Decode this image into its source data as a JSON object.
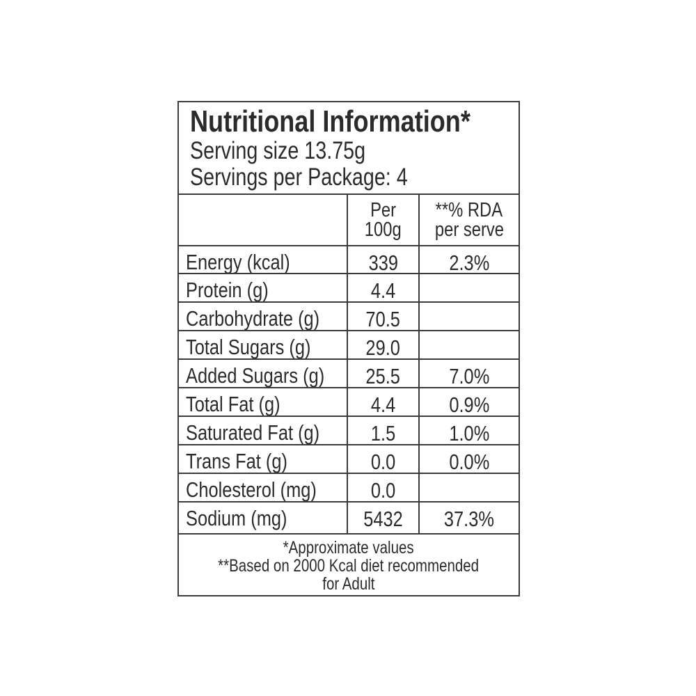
{
  "title": "Nutritional Information*",
  "serving_size": "Serving size 13.75g",
  "servings_per_package": "Servings per Package: 4",
  "columns": {
    "per100g_line1": "Per",
    "per100g_line2": "100g",
    "rda_line1": "**% RDA",
    "rda_line2": "per serve"
  },
  "rows": [
    {
      "label": "Energy (kcal)",
      "per100g": "339",
      "rda": "2.3%"
    },
    {
      "label": "Protein (g)",
      "per100g": "4.4",
      "rda": ""
    },
    {
      "label": "Carbohydrate (g)",
      "per100g": "70.5",
      "rda": ""
    },
    {
      "label": "Total Sugars (g)",
      "per100g": "29.0",
      "rda": ""
    },
    {
      "label": "Added Sugars (g)",
      "per100g": "25.5",
      "rda": "7.0%"
    },
    {
      "label": "Total Fat (g)",
      "per100g": "4.4",
      "rda": "0.9%"
    },
    {
      "label": "Saturated Fat (g)",
      "per100g": "1.5",
      "rda": "1.0%"
    },
    {
      "label": "Trans Fat (g)",
      "per100g": "0.0",
      "rda": "0.0%"
    },
    {
      "label": "Cholesterol (mg)",
      "per100g": "0.0",
      "rda": ""
    },
    {
      "label": "Sodium (mg)",
      "per100g": "5432",
      "rda": "37.3%"
    }
  ],
  "footnotes": {
    "approx": "*Approximate values",
    "based_line1": "**Based on 2000 Kcal diet recommended",
    "based_line2": "for Adult"
  }
}
